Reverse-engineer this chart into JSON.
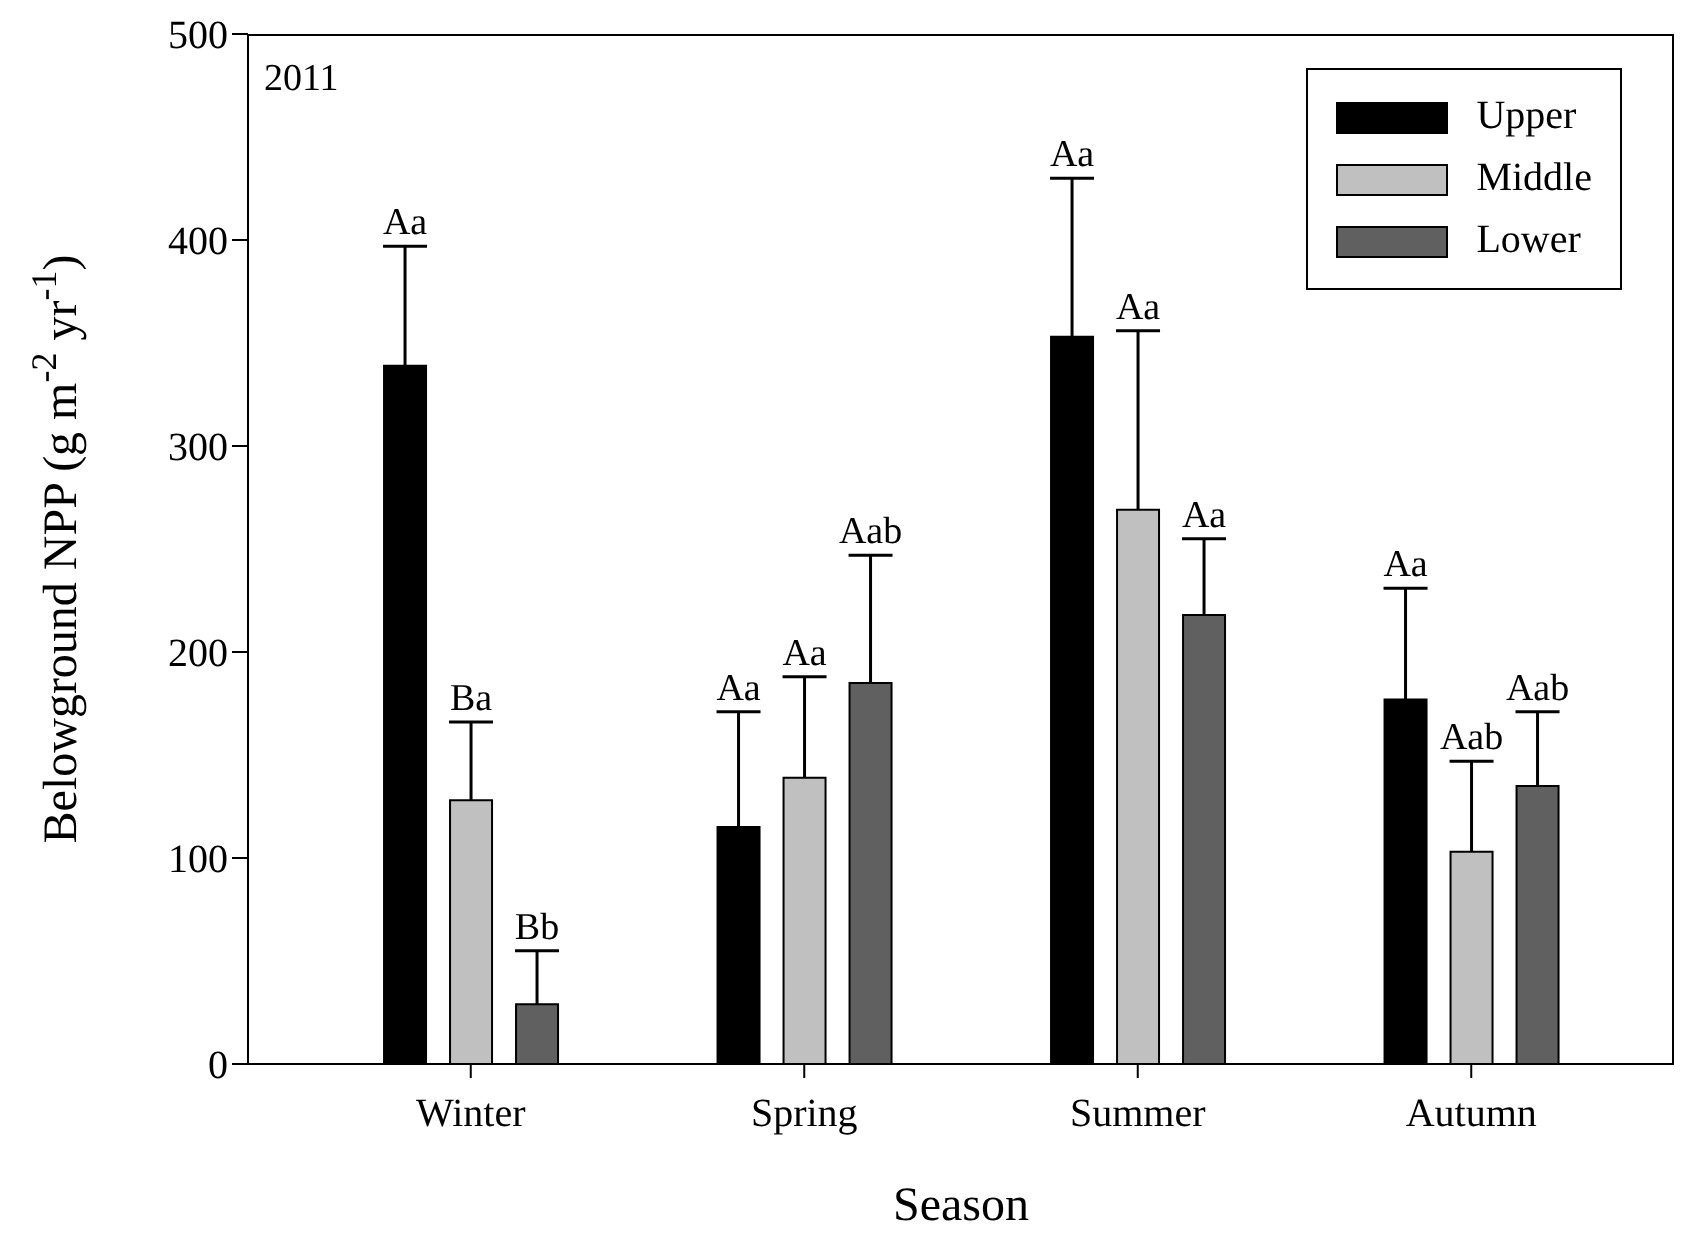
{
  "chart_data": {
    "type": "bar",
    "xlabel": "Season",
    "ylabel": "Belowground NPP (g m$^{-2}$ yr$^{-1}$)",
    "categories": [
      "Winter",
      "Spring",
      "Summer",
      "Autumn"
    ],
    "series": [
      {
        "name": "Upper",
        "color": "#000000",
        "values": [
          339,
          115,
          353,
          177
        ],
        "errors": [
          [
            339,
            397
          ],
          [
            115,
            171
          ],
          [
            353,
            430
          ],
          [
            177,
            231
          ]
        ]
      },
      {
        "name": "Middle",
        "color": "#c0c0c0",
        "values": [
          128,
          139,
          269,
          103
        ],
        "errors": [
          [
            128,
            166
          ],
          [
            139,
            188
          ],
          [
            269,
            356
          ],
          [
            103,
            147
          ]
        ]
      },
      {
        "name": "Lower",
        "color": "#606060",
        "values": [
          29,
          185,
          218,
          135
        ],
        "errors": [
          [
            29,
            55
          ],
          [
            185,
            247
          ],
          [
            218,
            255
          ],
          [
            135,
            171
          ]
        ]
      }
    ],
    "ylim": [
      0,
      500
    ],
    "yticks": [
      0,
      100,
      200,
      300,
      400,
      500
    ],
    "grid": false,
    "legend": "top right",
    "annotations": [
      "Aa",
      "Ba",
      "Bb",
      "Aa",
      "Aa",
      "Aab",
      "Aa",
      "Aa",
      "Aa",
      "Aa",
      "Aab",
      "Aab",
      "2011"
    ]
  }
}
